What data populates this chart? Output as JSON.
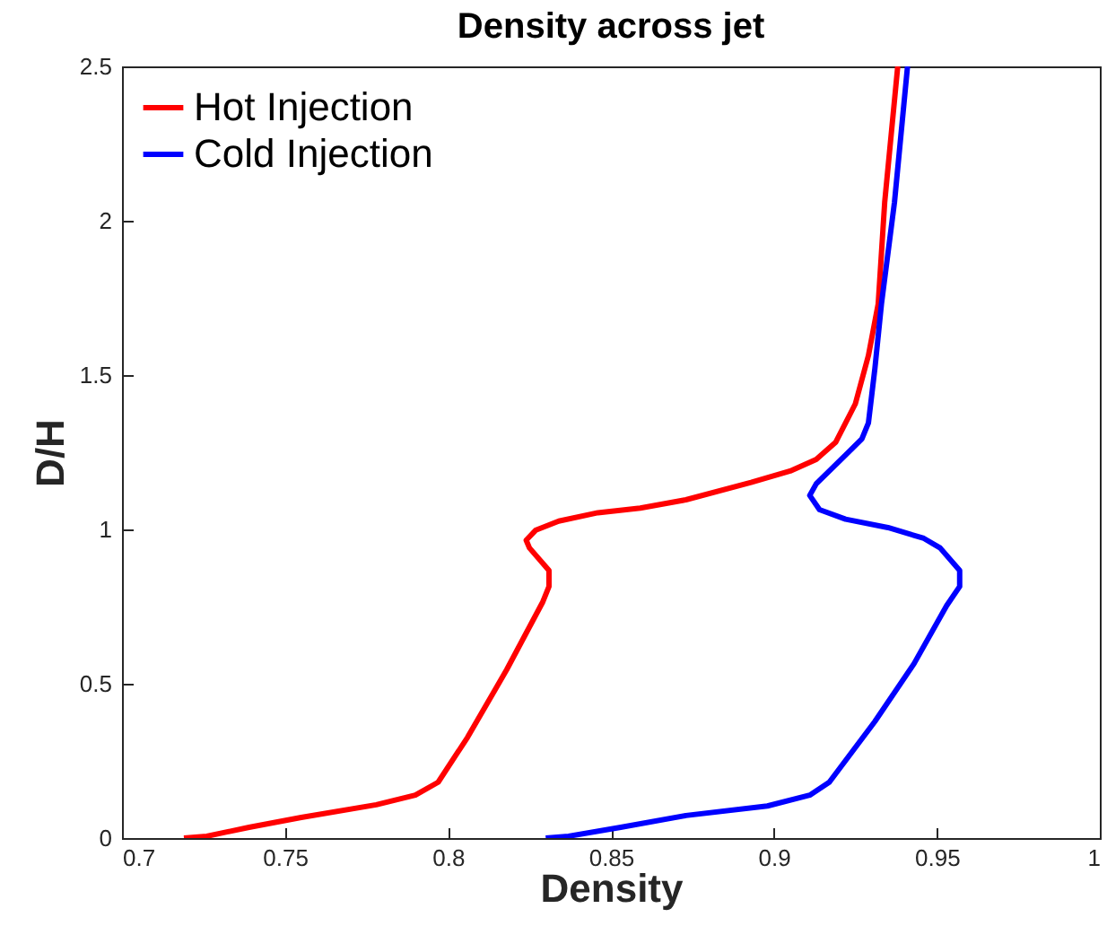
{
  "chart_data": {
    "type": "line",
    "title": "Density across jet",
    "xlabel": "Density",
    "ylabel": "D/H",
    "xlim": [
      0.7,
      1
    ],
    "xticks": [
      0.7,
      0.75,
      0.8,
      0.85,
      0.9,
      0.95,
      1
    ],
    "ylim": [
      0,
      2.5
    ],
    "yticks": [
      0,
      0.5,
      1,
      1.5,
      2,
      2.5
    ],
    "grid": false,
    "legend": "top left",
    "marker": "none",
    "line_style": "solid",
    "series": [
      {
        "name": "Hot Injection",
        "color": "#ff0000",
        "x": [
          0.719,
          0.726,
          0.739,
          0.755,
          0.778,
          0.79,
          0.797,
          0.806,
          0.818,
          0.829,
          0.831,
          0.831,
          0.825,
          0.824,
          0.827,
          0.834,
          0.846,
          0.859,
          0.873,
          0.893,
          0.905,
          0.913,
          0.919,
          0.925,
          0.929,
          0.932,
          0.934,
          0.938
        ],
        "values": [
          0,
          0.006,
          0.035,
          0.067,
          0.108,
          0.139,
          0.181,
          0.326,
          0.545,
          0.763,
          0.815,
          0.867,
          0.94,
          0.965,
          0.998,
          1.027,
          1.054,
          1.069,
          1.096,
          1.152,
          1.189,
          1.227,
          1.283,
          1.407,
          1.563,
          1.73,
          2.06,
          2.5
        ]
      },
      {
        "name": "Cold Injection",
        "color": "#0000ff",
        "x": [
          0.83,
          0.837,
          0.853,
          0.873,
          0.898,
          0.911,
          0.917,
          0.931,
          0.943,
          0.953,
          0.957,
          0.957,
          0.951,
          0.946,
          0.935,
          0.922,
          0.914,
          0.911,
          0.913,
          0.922,
          0.927,
          0.929,
          0.931,
          0.933,
          0.937,
          0.941
        ],
        "values": [
          0,
          0.006,
          0.035,
          0.073,
          0.104,
          0.139,
          0.181,
          0.378,
          0.565,
          0.753,
          0.815,
          0.867,
          0.94,
          0.971,
          1.006,
          1.033,
          1.064,
          1.11,
          1.148,
          1.241,
          1.293,
          1.345,
          1.522,
          1.73,
          2.06,
          2.5
        ]
      }
    ]
  }
}
